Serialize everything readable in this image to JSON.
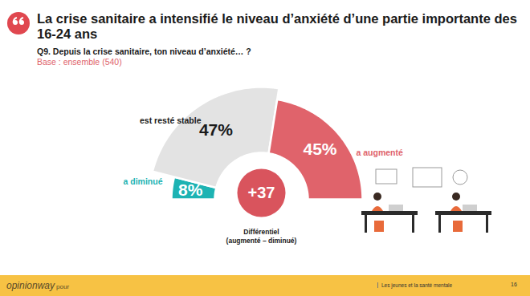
{
  "chart_data": {
    "type": "pie",
    "title": "La crise sanitaire a intensifié le niveau d’anxiété d’une partie importante des 16-24 ans",
    "subtitle": "Q9. Depuis la crise sanitaire, ton niveau d’anxiété… ?",
    "base": "Base : ensemble (540)",
    "categories": [
      "a diminué",
      "est resté stable",
      "a augmenté"
    ],
    "values": [
      8,
      47,
      45
    ],
    "value_labels": [
      "8%",
      "47%",
      "45%"
    ],
    "colors": [
      "#1db3b3",
      "#e3e3e3",
      "#e0636b"
    ],
    "data_labels": true,
    "differential": {
      "value": 37,
      "label": "+37",
      "title": "Différentiel",
      "subtitle": "(augmenté – diminué)",
      "color": "#d9545d"
    },
    "footer": {
      "brand": "opinionway",
      "brand_suffix": "pour",
      "report": "Les jeunes et la santé mentale",
      "page": 16
    }
  }
}
